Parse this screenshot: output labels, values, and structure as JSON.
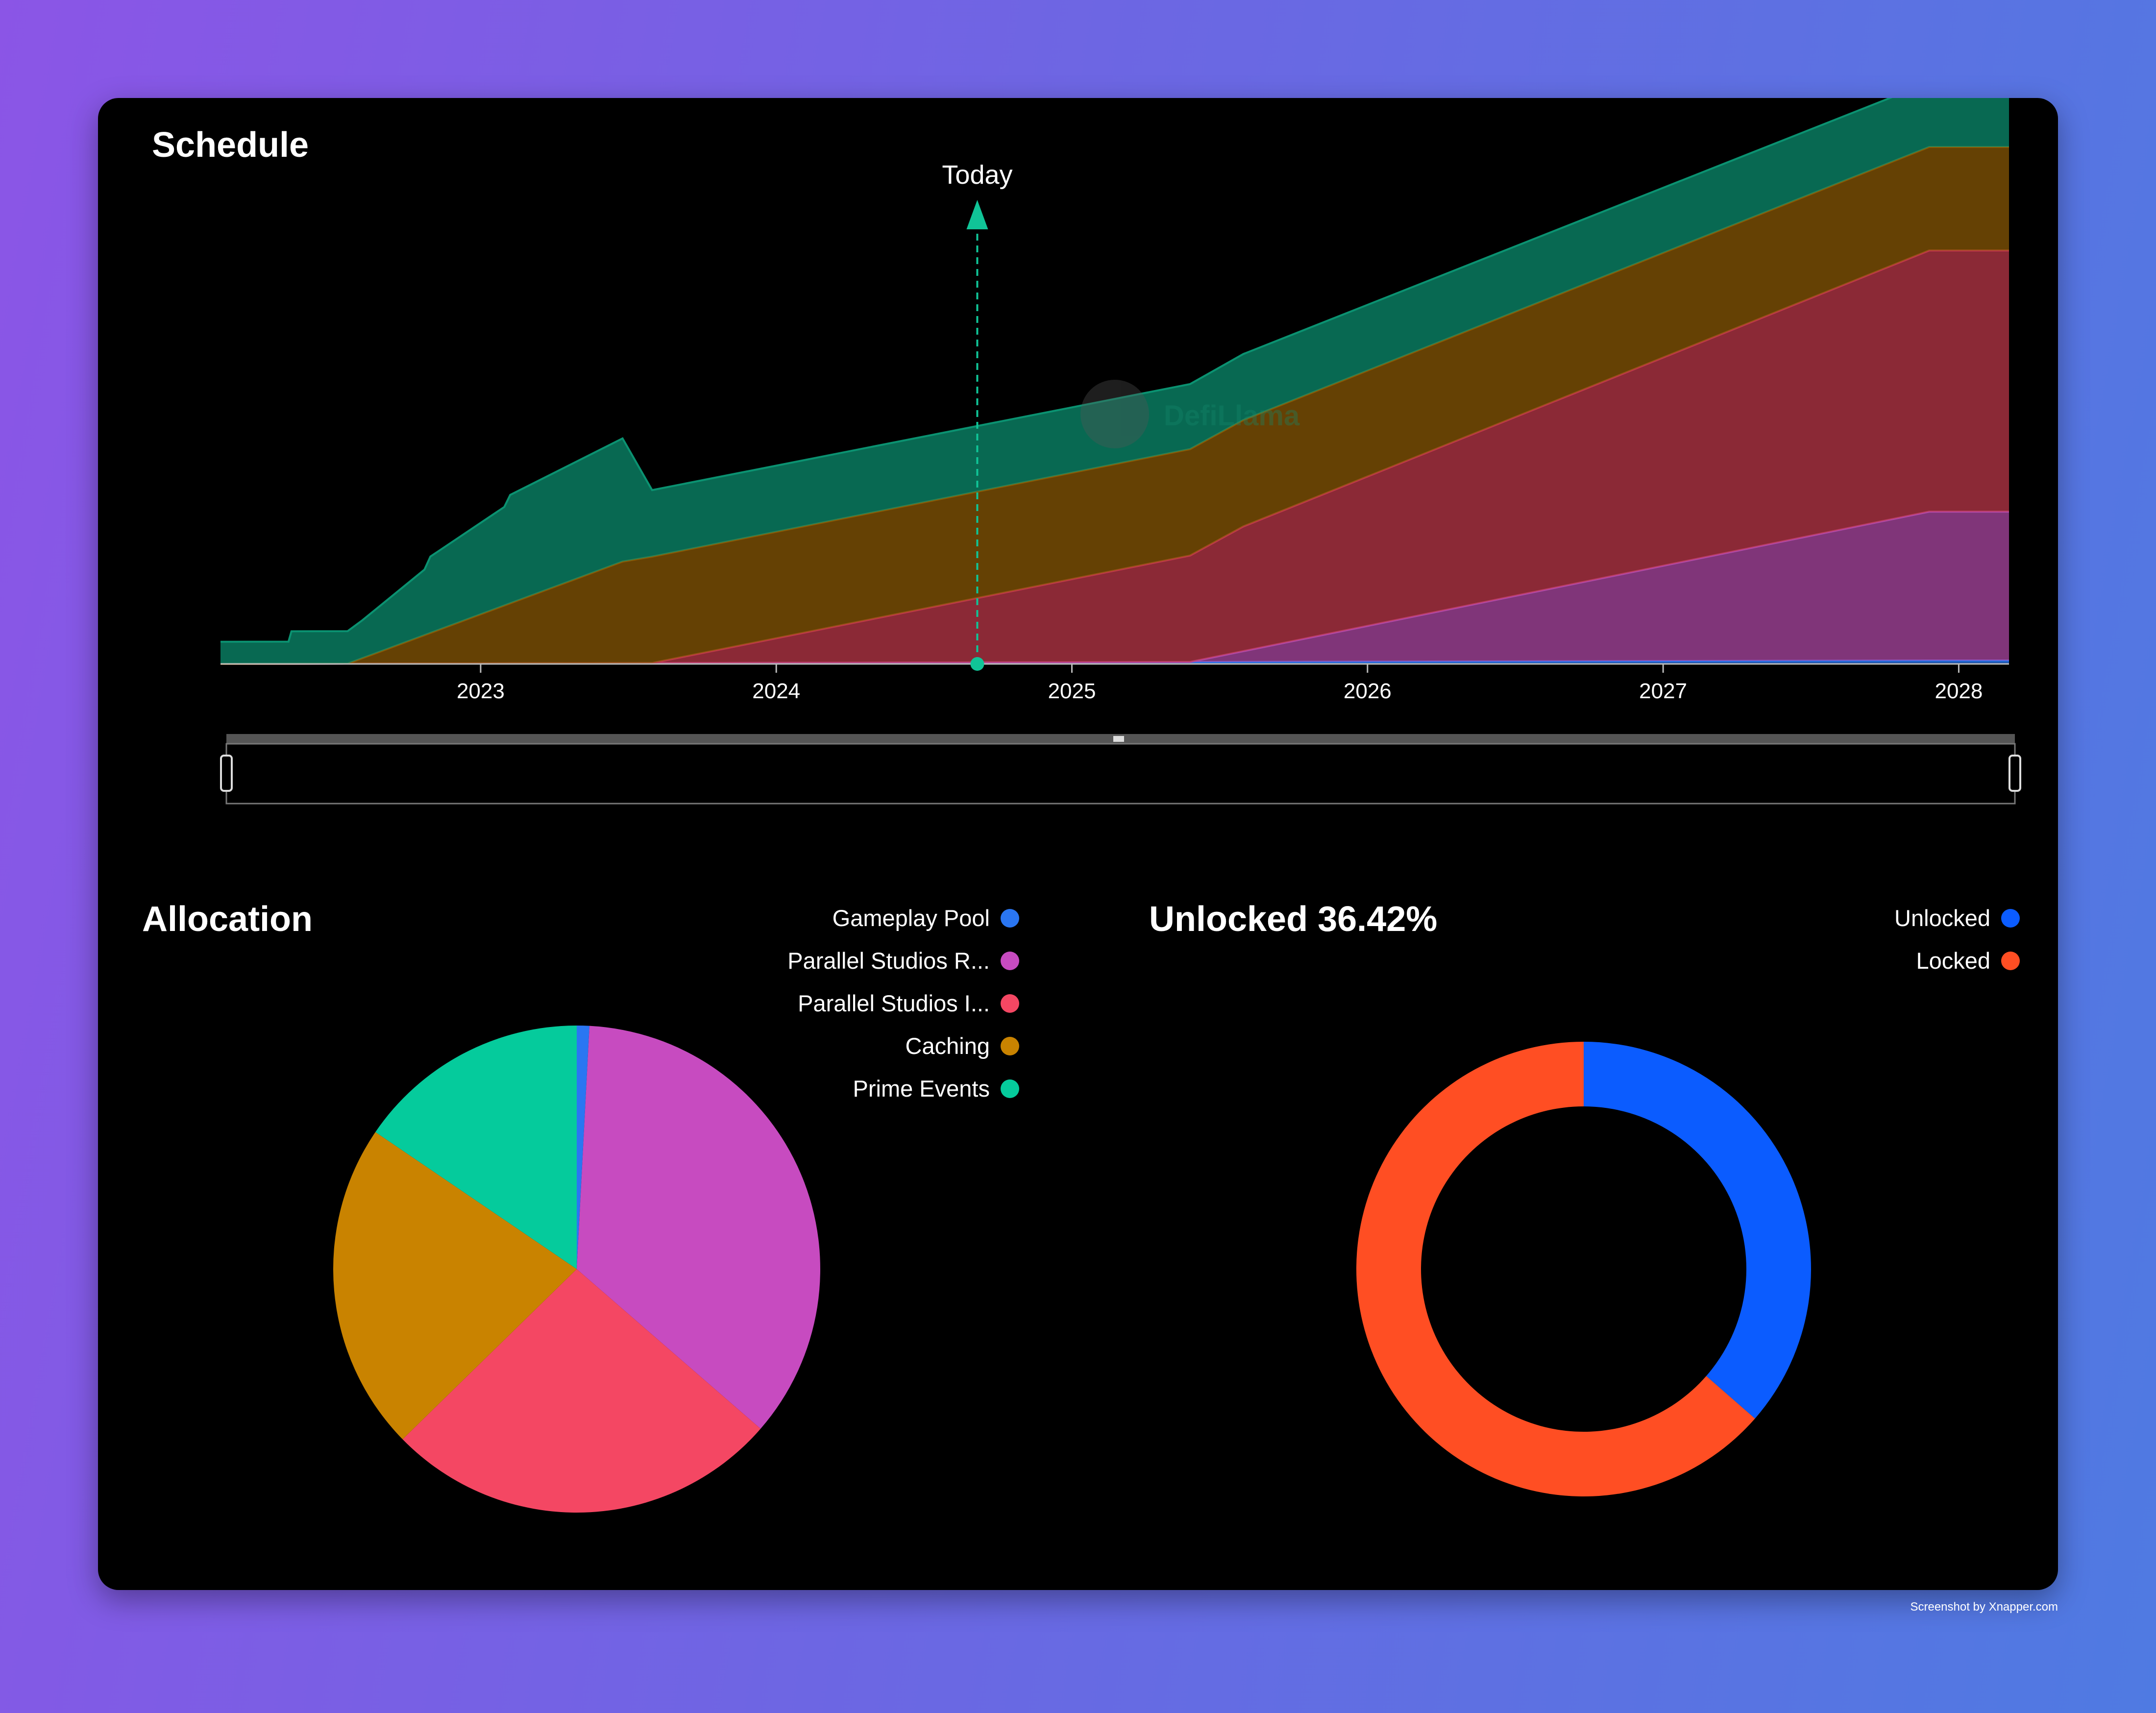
{
  "credit": "Screenshot by Xnapper.com",
  "chart_data": [
    {
      "type": "area",
      "title": "Schedule",
      "stacked": true,
      "x_axis": {
        "ticks": [
          "2023",
          "2024",
          "2025",
          "2026",
          "2027",
          "2028"
        ],
        "range": [
          2022.12,
          2028.17
        ]
      },
      "y_visible": false,
      "grid": false,
      "marker": {
        "label": "Today",
        "x": 2024.68
      },
      "watermark": "DefiLlama",
      "series": [
        {
          "color": "#2a76f2",
          "x": [
            2022.12,
            2027.9,
            2028.17
          ],
          "y": [
            0,
            0.7,
            0.7
          ]
        },
        {
          "color": "#b24aa8",
          "x": [
            2022.12,
            2025.4,
            2027.9,
            2028.17
          ],
          "y": [
            0,
            0,
            30.2,
            30.2
          ]
        },
        {
          "color": "#c0394b",
          "x": [
            2022.12,
            2023.58,
            2025.4,
            2025.58,
            2027.9,
            2028.17
          ],
          "y": [
            0,
            0,
            21.6,
            25.3,
            53.0,
            53.0
          ]
        },
        {
          "color": "#8c5a05",
          "x": [
            2022.12,
            2022.55,
            2023.48,
            2023.58,
            2025.4,
            2025.58,
            2027.9,
            2028.17
          ],
          "y": [
            0,
            0,
            20.6,
            21.6,
            21.6,
            21.6,
            21.0,
            21.0
          ]
        },
        {
          "color": "#0b9271",
          "x": [
            2022.12,
            2022.35,
            2022.36,
            2022.55,
            2022.6,
            2022.6,
            2022.81,
            2022.83,
            2023.08,
            2023.1,
            2023.48,
            2023.58,
            2025.4,
            2025.58,
            2027.9,
            2028.17
          ],
          "y": [
            4.5,
            4.5,
            6.6,
            6.6,
            7.7,
            9.9,
            13.3,
            15.5,
            20.0,
            22.0,
            25.0,
            13.5,
            13.2,
            13.4,
            13.1,
            13.1
          ]
        }
      ],
      "slider": {
        "start": 0,
        "end": 100
      }
    },
    {
      "type": "pie",
      "title": "Allocation",
      "legend_position": "top-right",
      "series": [
        {
          "name": "Gameplay Pool",
          "value": 0.8,
          "color": "#2a76f2"
        },
        {
          "name": "Parallel Studios R...",
          "value": 34.2,
          "color": "#c74bc0"
        },
        {
          "name": "Parallel Studios I...",
          "value": 25.3,
          "color": "#f44763"
        },
        {
          "name": "Caching",
          "value": 21.0,
          "color": "#c98300"
        },
        {
          "name": "Prime Events",
          "value": 14.9,
          "color": "#05cb9c"
        }
      ]
    },
    {
      "type": "pie",
      "donut": true,
      "title": "Unlocked 36.42%",
      "legend_position": "top-right",
      "series": [
        {
          "name": "Unlocked",
          "value": 36.42,
          "color": "#0b5cff"
        },
        {
          "name": "Locked",
          "value": 63.58,
          "color": "#ff4e23"
        }
      ]
    }
  ]
}
